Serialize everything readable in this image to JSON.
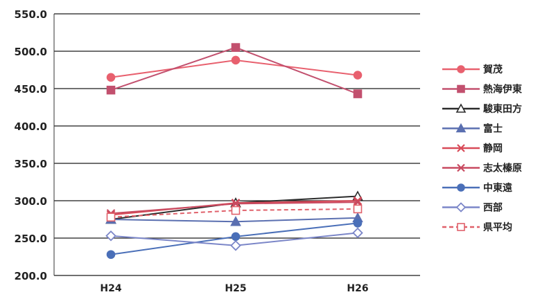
{
  "chart_data": {
    "type": "line",
    "categories": [
      "H24",
      "H25",
      "H26"
    ],
    "ylim": [
      200,
      550
    ],
    "yticks": [
      "550.0",
      "500.0",
      "450.0",
      "400.0",
      "350.0",
      "300.0",
      "250.0",
      "200.0"
    ],
    "grid": true,
    "legend_position": "right",
    "series": [
      {
        "name": "賀茂",
        "values": [
          465,
          488,
          468
        ],
        "color": "#e8606e",
        "marker": "circle",
        "dashed": false,
        "filled": true
      },
      {
        "name": "熱海伊東",
        "values": [
          448,
          505,
          443
        ],
        "color": "#c2506e",
        "marker": "square",
        "dashed": false,
        "filled": true
      },
      {
        "name": "駿東田方",
        "values": [
          275,
          297,
          306
        ],
        "color": "#2b2b2b",
        "marker": "triangle",
        "dashed": false,
        "filled": false
      },
      {
        "name": "富士",
        "values": [
          275,
          272,
          277
        ],
        "color": "#5a6fb0",
        "marker": "triangle",
        "dashed": false,
        "filled": true
      },
      {
        "name": "静岡",
        "values": [
          281,
          297,
          300
        ],
        "color": "#d84a58",
        "marker": "x",
        "dashed": false,
        "filled": false
      },
      {
        "name": "志太榛原",
        "values": [
          283,
          296,
          298
        ],
        "color": "#c84a60",
        "marker": "x",
        "dashed": false,
        "filled": false
      },
      {
        "name": "中東遠",
        "values": [
          228,
          252,
          270
        ],
        "color": "#4a6fb8",
        "marker": "circle",
        "dashed": false,
        "filled": true
      },
      {
        "name": "西部",
        "values": [
          253,
          240,
          257
        ],
        "color": "#7b86c8",
        "marker": "diamond",
        "dashed": false,
        "filled": false
      },
      {
        "name": "県平均",
        "values": [
          278,
          287,
          289
        ],
        "color": "#e0606a",
        "marker": "square",
        "dashed": true,
        "filled": false
      }
    ]
  }
}
